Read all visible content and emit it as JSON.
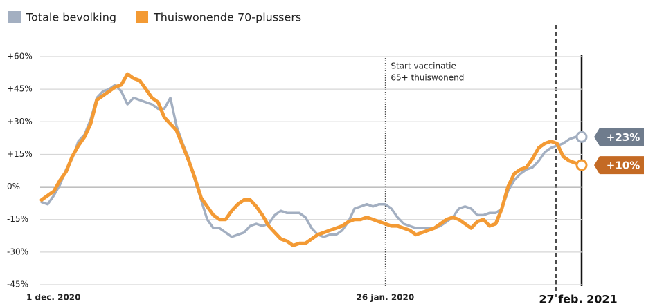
{
  "chart_data": {
    "type": "line",
    "categories": [
      "1 dec. 2020",
      null,
      null,
      null,
      null,
      null,
      null,
      null,
      null,
      null,
      null,
      null,
      null,
      null,
      null,
      null,
      null,
      null,
      null,
      null,
      null,
      null,
      null,
      null,
      null,
      null,
      null,
      null,
      null,
      null,
      null,
      null,
      null,
      null,
      null,
      null,
      null,
      null,
      null,
      null,
      null,
      null,
      null,
      null,
      null,
      null,
      null,
      null,
      null,
      null,
      null,
      null,
      null,
      null,
      null,
      null,
      "26 jan. 2020",
      null,
      null,
      null,
      null,
      null,
      null,
      null,
      null,
      null,
      null,
      null,
      null,
      null,
      null,
      null,
      null,
      null,
      null,
      null,
      null,
      null,
      null,
      null,
      null,
      null,
      null,
      null,
      null,
      null,
      null,
      null,
      "27 feb. 2021"
    ],
    "series": [
      {
        "name": "Totale bevolking",
        "color": "#a3afc1",
        "end_label": "+23%",
        "values": [
          -7,
          -8,
          -4,
          1,
          8,
          13,
          21,
          24,
          31,
          41,
          44,
          45,
          47,
          44,
          38,
          41,
          40,
          39,
          38,
          36,
          36,
          41,
          28,
          20,
          13,
          3,
          -6,
          -15,
          -19,
          -19,
          -21,
          -23,
          -22,
          -21,
          -18,
          -17,
          -18,
          -17,
          -13,
          -11,
          -12,
          -12,
          -12,
          -14,
          -19,
          -22,
          -23,
          -22,
          -22,
          -20,
          -16,
          -10,
          -9,
          -8,
          -9,
          -8,
          -8,
          -10,
          -14,
          -17,
          -18,
          -19,
          -19,
          -19,
          -19,
          -18,
          -16,
          -14,
          -10,
          -9,
          -10,
          -13,
          -13,
          -12,
          -12,
          -10,
          -2,
          3,
          6,
          8,
          9,
          12,
          16,
          18,
          19,
          20,
          22,
          23,
          23
        ]
      },
      {
        "name": "Thuiswonende 70-plussers",
        "color": "#f39a34",
        "end_label": "+10%",
        "values": [
          -6,
          -4,
          -2,
          3,
          7,
          14,
          19,
          23,
          29,
          40,
          42,
          44,
          46,
          47,
          52,
          50,
          49,
          45,
          41,
          39,
          32,
          29,
          26,
          19,
          12,
          4,
          -5,
          -9,
          -13,
          -15,
          -15,
          -11,
          -8,
          -6,
          -6,
          -9,
          -13,
          -18,
          -21,
          -24,
          -25,
          -27,
          -26,
          -26,
          -24,
          -22,
          -21,
          -20,
          -19,
          -18,
          -16,
          -15,
          -15,
          -14,
          -15,
          -16,
          -17,
          -18,
          -18,
          -19,
          -20,
          -22,
          -21,
          -20,
          -19,
          -17,
          -15,
          -14,
          -15,
          -17,
          -19,
          -16,
          -15,
          -18,
          -17,
          -10,
          0,
          6,
          8,
          9,
          13,
          18,
          20,
          21,
          20,
          14,
          12,
          11,
          10
        ]
      }
    ],
    "ylim": [
      -45,
      60
    ],
    "yticks": [
      {
        "value": -45,
        "label": "-45%"
      },
      {
        "value": -30,
        "label": "-30%"
      },
      {
        "value": -15,
        "label": "-15%"
      },
      {
        "value": 0,
        "label": "0%"
      },
      {
        "value": 15,
        "label": "+15%"
      },
      {
        "value": 30,
        "label": "+30%"
      },
      {
        "value": 45,
        "label": "+45%"
      },
      {
        "value": 60,
        "label": "+60%"
      }
    ],
    "grid": true,
    "annotation": [
      "Start vaccinatie",
      "65+ thuiswonend"
    ]
  }
}
